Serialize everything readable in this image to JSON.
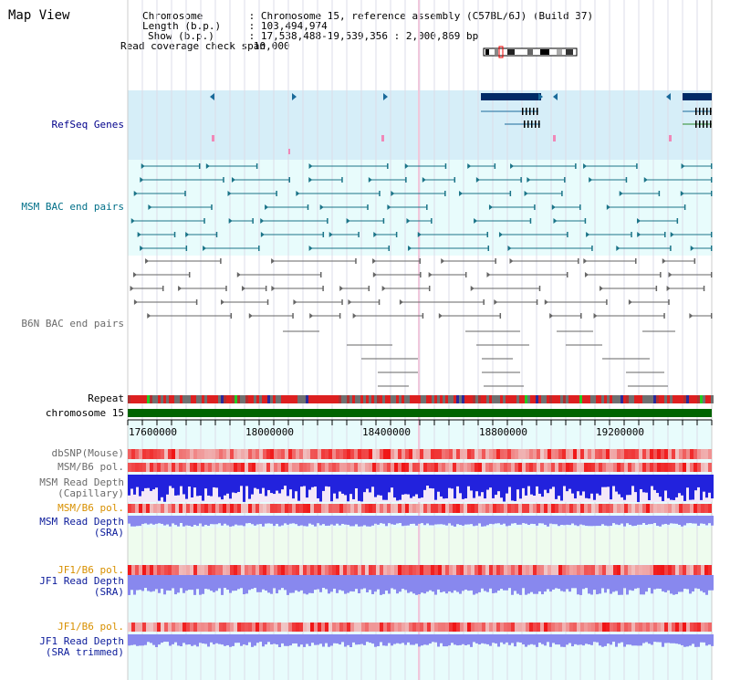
{
  "view_title": "Map View",
  "info": {
    "chromosome_key": "Chromosome",
    "chromosome_val": "Chromosome 15, reference assembly (C57BL/6J) (Build 37)",
    "length_key": "Length (b.p.)",
    "length_val": "103,494,974",
    "show_key": "Show (b.p.)",
    "show_val": "17,538,488-19,539,356 : 2,000,869 bp",
    "coverage_key": "Read coverage check span",
    "coverage_val": "10,000"
  },
  "tracks": {
    "refseq": "RefSeq Genes",
    "msm_bac": "MSM BAC end pairs",
    "b6n_bac": "B6N BAC end pairs",
    "repeat": "Repeat",
    "chromosome": "chromosome 15",
    "dbsnp": "dbSNP(Mouse)",
    "msm_b6_pol_1": "MSM/B6 pol.",
    "msm_read_depth_cap_1": "MSM Read Depth",
    "msm_read_depth_cap_2": "(Capillary)",
    "msm_b6_pol_2": "MSM/B6 pol.",
    "msm_read_depth_sra_1": "MSM Read Depth",
    "msm_read_depth_sra_2": "(SRA)",
    "jf1_b6_pol_1": "JF1/B6 pol.",
    "jf1_read_depth_1": "JF1 Read Depth",
    "jf1_read_depth_2": "(SRA)",
    "jf1_b6_pol_2": "JF1/B6 pol.",
    "jf1_read_depth_trim_1": "JF1 Read Depth",
    "jf1_read_depth_trim_2": "(SRA trimmed)"
  },
  "axis": {
    "ticks": [
      "17600000",
      "18000000",
      "18400000",
      "18800000",
      "19200000"
    ]
  },
  "colors": {
    "refseq_bg": "#d6eef8",
    "msm_bg": "#e8fcfc",
    "b6n_bg": "#ffffff",
    "chromosome_bar": "#006400",
    "depth_blue": "#2222dd",
    "depth_light": "#8888ee",
    "pol_red": "#ee2222"
  }
}
